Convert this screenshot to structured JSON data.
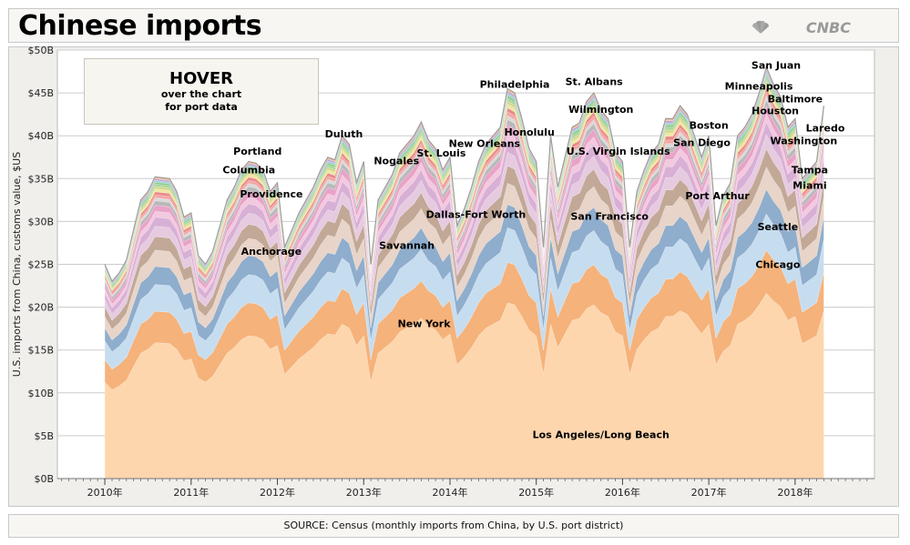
{
  "header": {
    "title": "Chinese imports",
    "logo_text": "CNBC"
  },
  "hover_box": {
    "title": "HOVER",
    "line1": "over the chart",
    "line2": "for port data"
  },
  "footer": {
    "source": "SOURCE: Census (monthly imports from China, by U.S. port district)"
  },
  "colors": {
    "plot_bg": "#ffffff",
    "frame_bg": "#f0efec",
    "gridline": "#cccccc"
  },
  "chart_data": {
    "type": "area",
    "stacked": true,
    "title": "Chinese imports",
    "ylabel": "U.S. imports from China, customs value, $US",
    "xlabel": "",
    "ylim": [
      0,
      50
    ],
    "y_ticks": [
      0,
      5,
      10,
      15,
      20,
      25,
      30,
      35,
      40,
      45,
      50
    ],
    "y_tick_labels": [
      "$0B",
      "$5B",
      "$10B",
      "$15B",
      "$20B",
      "$25B",
      "$30B",
      "$35B",
      "$40B",
      "$45B",
      "$50B"
    ],
    "x_range": [
      2009.45,
      2018.92
    ],
    "x_ticks": [
      2010,
      2011,
      2012,
      2013,
      2014,
      2015,
      2016,
      2017,
      2018
    ],
    "x_tick_labels": [
      "2010年",
      "2011年",
      "2012年",
      "2013年",
      "2014年",
      "2015年",
      "2016年",
      "2017年",
      "2018年"
    ],
    "x_points": [
      2010.0,
      2010.083,
      2010.167,
      2010.25,
      2010.333,
      2010.417,
      2010.5,
      2010.583,
      2010.667,
      2010.75,
      2010.833,
      2010.917,
      2011.0,
      2011.083,
      2011.167,
      2011.25,
      2011.333,
      2011.417,
      2011.5,
      2011.583,
      2011.667,
      2011.75,
      2011.833,
      2011.917,
      2012.0,
      2012.083,
      2012.167,
      2012.25,
      2012.333,
      2012.417,
      2012.5,
      2012.583,
      2012.667,
      2012.75,
      2012.833,
      2012.917,
      2013.0,
      2013.083,
      2013.167,
      2013.25,
      2013.333,
      2013.417,
      2013.5,
      2013.583,
      2013.667,
      2013.75,
      2013.833,
      2013.917,
      2014.0,
      2014.083,
      2014.167,
      2014.25,
      2014.333,
      2014.417,
      2014.5,
      2014.583,
      2014.667,
      2014.75,
      2014.833,
      2014.917,
      2015.0,
      2015.083,
      2015.167,
      2015.25,
      2015.333,
      2015.417,
      2015.5,
      2015.583,
      2015.667,
      2015.75,
      2015.833,
      2015.917,
      2016.0,
      2016.083,
      2016.167,
      2016.25,
      2016.333,
      2016.417,
      2016.5,
      2016.583,
      2016.667,
      2016.75,
      2016.833,
      2016.917,
      2017.0,
      2017.083,
      2017.167,
      2017.25,
      2017.333,
      2017.417,
      2017.5,
      2017.583,
      2017.667,
      2017.75,
      2017.833,
      2017.917,
      2018.0,
      2018.083,
      2018.167,
      2018.25,
      2018.333
    ],
    "totals": [
      25.0,
      23.0,
      24.0,
      25.5,
      29.0,
      32.5,
      33.5,
      35.2,
      35.1,
      35.0,
      33.5,
      30.5,
      31.0,
      26.0,
      25.0,
      26.5,
      29.5,
      32.5,
      34.0,
      36.0,
      37.0,
      36.8,
      36.0,
      33.5,
      34.5,
      27.0,
      29.0,
      31.0,
      32.5,
      34.0,
      36.0,
      37.5,
      37.2,
      40.0,
      39.0,
      34.5,
      37.0,
      25.0,
      32.5,
      34.0,
      35.5,
      38.0,
      39.0,
      40.0,
      41.6,
      39.5,
      38.5,
      36.0,
      37.5,
      29.5,
      31.5,
      34.0,
      37.0,
      39.0,
      40.0,
      41.0,
      45.5,
      45.0,
      42.0,
      38.5,
      37.0,
      27.0,
      40.0,
      34.0,
      37.5,
      41.0,
      41.5,
      44.0,
      45.0,
      43.0,
      42.0,
      38.0,
      37.0,
      27.0,
      33.5,
      36.0,
      38.0,
      39.0,
      42.0,
      42.0,
      43.5,
      42.5,
      40.0,
      37.5,
      40.0,
      29.5,
      33.0,
      34.5,
      40.0,
      41.0,
      42.5,
      45.0,
      48.0,
      46.0,
      44.5,
      41.0,
      42.0,
      35.0,
      36.0,
      37.0,
      43.5
    ],
    "series": [
      {
        "name": "Los Angeles/Long Beach",
        "share": 0.455,
        "color": "#fdd6ae"
      },
      {
        "name": "New York",
        "share": 0.105,
        "color": "#f5b27a"
      },
      {
        "name": "Chicago",
        "share": 0.09,
        "color": "#c6ddf0"
      },
      {
        "name": "Seattle",
        "share": 0.06,
        "color": "#8fadcc"
      },
      {
        "name": "Port Arthur",
        "share": 0.055,
        "color": "#e8d4c8"
      },
      {
        "name": "San Francisco",
        "share": 0.045,
        "color": "#c2a896"
      },
      {
        "name": "Savannah",
        "share": 0.035,
        "color": "#e6cbe0"
      },
      {
        "name": "Dallas-Fort Worth",
        "share": 0.03,
        "color": "#d8b0d6"
      },
      {
        "name": "Miami",
        "share": 0.02,
        "color": "#f2c9df"
      },
      {
        "name": "Anchorage",
        "share": 0.02,
        "color": "#e9a3c7"
      },
      {
        "name": "Houston",
        "share": 0.015,
        "color": "#b9b9b9"
      },
      {
        "name": "Tampa",
        "share": 0.01,
        "color": "#d9d9d9"
      },
      {
        "name": "San Diego",
        "share": 0.01,
        "color": "#f4a6a6"
      },
      {
        "name": "Boston",
        "share": 0.01,
        "color": "#e88a8a"
      },
      {
        "name": "U.S. Virgin Islands",
        "share": 0.01,
        "color": "#f0e6a6"
      },
      {
        "name": "Providence",
        "share": 0.008,
        "color": "#d6d68c"
      },
      {
        "name": "Washington",
        "share": 0.008,
        "color": "#a8d8a0"
      },
      {
        "name": "Honolulu",
        "share": 0.006,
        "color": "#8cc886"
      },
      {
        "name": "New Orleans",
        "share": 0.006,
        "color": "#9ed4d4"
      },
      {
        "name": "St. Louis",
        "share": 0.006,
        "color": "#c4a4d8"
      },
      {
        "name": "Nogales",
        "share": 0.006,
        "color": "#f0c090"
      }
    ],
    "labels": [
      {
        "text": "Los Angeles/Long Beach",
        "x": 2015.75,
        "y": 4.7
      },
      {
        "text": "New York",
        "x": 2013.7,
        "y": 17.7
      },
      {
        "text": "Chicago",
        "x": 2017.8,
        "y": 24.6
      },
      {
        "text": "Seattle",
        "x": 2017.8,
        "y": 29.0
      },
      {
        "text": "Port Arthur",
        "x": 2017.1,
        "y": 32.6
      },
      {
        "text": "San Francisco",
        "x": 2015.85,
        "y": 30.2
      },
      {
        "text": "Dallas-Fort Worth",
        "x": 2014.3,
        "y": 30.4
      },
      {
        "text": "Savannah",
        "x": 2013.5,
        "y": 26.8
      },
      {
        "text": "Anchorage",
        "x": 2011.93,
        "y": 26.1
      },
      {
        "text": "Providence",
        "x": 2011.93,
        "y": 32.8
      },
      {
        "text": "Columbia",
        "x": 2011.67,
        "y": 35.6
      },
      {
        "text": "Portland",
        "x": 2011.77,
        "y": 37.8
      },
      {
        "text": "Duluth",
        "x": 2012.77,
        "y": 39.8
      },
      {
        "text": "Nogales",
        "x": 2013.38,
        "y": 36.7
      },
      {
        "text": "St. Louis",
        "x": 2013.9,
        "y": 37.6
      },
      {
        "text": "New Orleans",
        "x": 2014.4,
        "y": 38.7
      },
      {
        "text": "Honolulu",
        "x": 2014.92,
        "y": 40.0
      },
      {
        "text": "Philadelphia",
        "x": 2014.75,
        "y": 45.6
      },
      {
        "text": "St. Albans",
        "x": 2015.67,
        "y": 45.9
      },
      {
        "text": "Wilmington",
        "x": 2015.75,
        "y": 42.7
      },
      {
        "text": "U.S. Virgin Islands",
        "x": 2015.95,
        "y": 37.8
      },
      {
        "text": "Boston",
        "x": 2017.0,
        "y": 40.8
      },
      {
        "text": "San Diego",
        "x": 2016.92,
        "y": 38.8
      },
      {
        "text": "Minneapolis",
        "x": 2017.58,
        "y": 45.4
      },
      {
        "text": "San Juan",
        "x": 2017.78,
        "y": 47.8
      },
      {
        "text": "Baltimore",
        "x": 2018.0,
        "y": 43.9
      },
      {
        "text": "Houston",
        "x": 2017.77,
        "y": 42.5
      },
      {
        "text": "Laredo",
        "x": 2018.35,
        "y": 40.5
      },
      {
        "text": "Washington",
        "x": 2018.1,
        "y": 39.0
      },
      {
        "text": "Tampa",
        "x": 2018.17,
        "y": 35.6
      },
      {
        "text": "Miami",
        "x": 2018.17,
        "y": 33.8
      }
    ]
  }
}
